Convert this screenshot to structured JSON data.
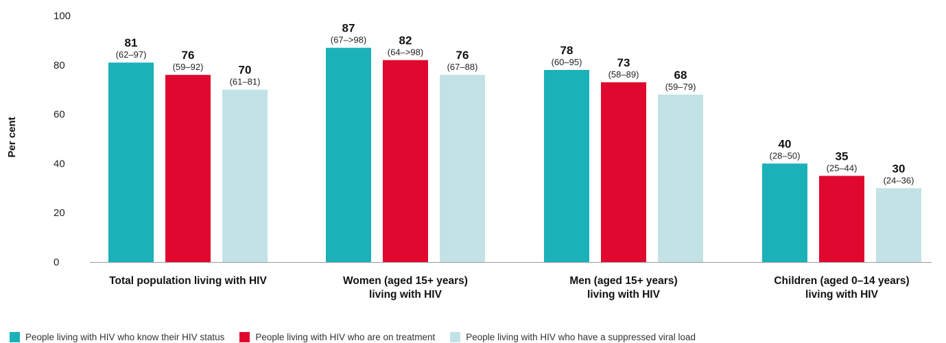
{
  "chart_data": {
    "type": "bar",
    "ylabel": "Per cent",
    "ylim": [
      0,
      100
    ],
    "yticks": [
      0,
      20,
      40,
      60,
      80,
      100
    ],
    "grid": false,
    "legend_position": "bottom",
    "categories": [
      [
        "Total population living with HIV"
      ],
      [
        "Women (aged 15+ years)",
        "living with HIV"
      ],
      [
        "Men (aged 15+ years)",
        "living with HIV"
      ],
      [
        "Children (aged 0–14 years)",
        "living with HIV"
      ]
    ],
    "series": [
      {
        "name": "People living with HIV who know their HIV status",
        "color": "#1BB1B8",
        "values": [
          81,
          87,
          78,
          40
        ],
        "ranges": [
          "(62–97)",
          "(67–>98)",
          "(60–95)",
          "(28–50)"
        ]
      },
      {
        "name": "People living with HIV who are on treatment",
        "color": "#E0082E",
        "values": [
          76,
          82,
          73,
          35
        ],
        "ranges": [
          "(59–92)",
          "(64–>98)",
          "(58–89)",
          "(25–44)"
        ]
      },
      {
        "name": "People living with HIV who have a suppressed viral load",
        "color": "#C2E2E6",
        "values": [
          70,
          76,
          68,
          30
        ],
        "ranges": [
          "(61–81)",
          "(67–88)",
          "(59–79)",
          "(24–36)"
        ]
      }
    ]
  }
}
